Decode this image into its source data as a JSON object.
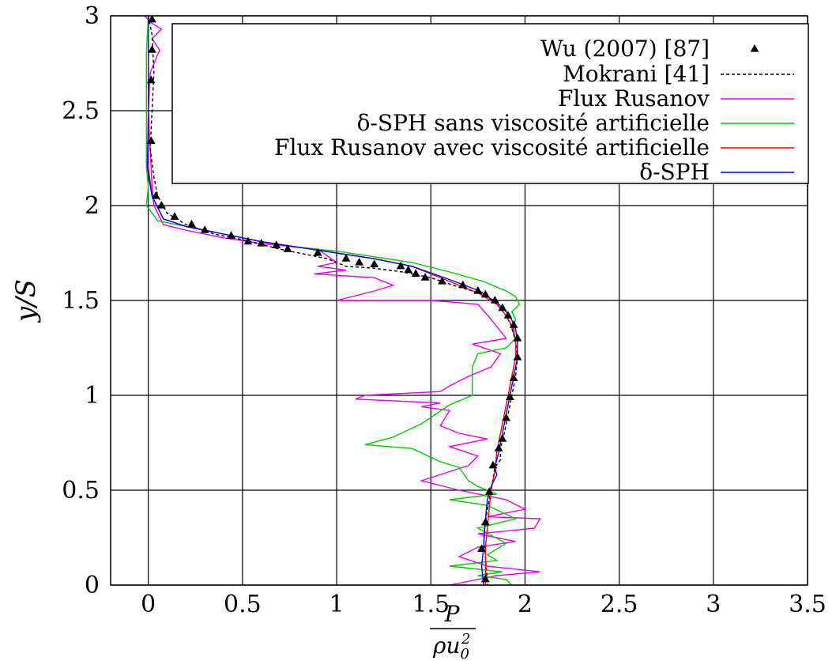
{
  "chart_data": {
    "type": "line",
    "xlabel": {
      "numerator": "P",
      "denominator_base": "ρu",
      "denominator_sub": "0",
      "denominator_sup": "2"
    },
    "ylabel": "y/S",
    "xlim": [
      -0.2,
      3.5
    ],
    "ylim": [
      0,
      3
    ],
    "x_ticks": [
      0,
      0.5,
      1,
      1.5,
      2,
      2.5,
      3,
      3.5
    ],
    "x_tick_labels": [
      "0",
      "0.5",
      "1",
      "1.5",
      "2",
      "2.5",
      "3",
      "3.5"
    ],
    "y_ticks": [
      0,
      0.5,
      1,
      1.5,
      2,
      2.5,
      3
    ],
    "y_tick_labels": [
      "0",
      "0.5",
      "1",
      "1.5",
      "2",
      "2.5",
      "3"
    ],
    "grid": true,
    "legend_position": "top-right",
    "series": [
      {
        "name": "Wu (2007) [87]",
        "style": "markers",
        "marker": "triangle",
        "color": "#000000",
        "points": [
          [
            0.02,
            2.98
          ],
          [
            0.02,
            2.82
          ],
          [
            0.015,
            2.66
          ],
          [
            0.015,
            2.34
          ],
          [
            0.04,
            2.05
          ],
          [
            0.07,
            2.0
          ],
          [
            0.14,
            1.94
          ],
          [
            0.23,
            1.9
          ],
          [
            0.3,
            1.87
          ],
          [
            0.44,
            1.84
          ],
          [
            0.53,
            1.81
          ],
          [
            0.6,
            1.8
          ],
          [
            0.68,
            1.79
          ],
          [
            0.74,
            1.77
          ],
          [
            0.9,
            1.75
          ],
          [
            1.05,
            1.72
          ],
          [
            1.12,
            1.7
          ],
          [
            1.2,
            1.69
          ],
          [
            1.34,
            1.68
          ],
          [
            1.38,
            1.66
          ],
          [
            1.42,
            1.64
          ],
          [
            1.47,
            1.62
          ],
          [
            1.56,
            1.6
          ],
          [
            1.67,
            1.58
          ],
          [
            1.75,
            1.55
          ],
          [
            1.79,
            1.53
          ],
          [
            1.84,
            1.5
          ],
          [
            1.88,
            1.46
          ],
          [
            1.91,
            1.42
          ],
          [
            1.94,
            1.37
          ],
          [
            1.96,
            1.3
          ],
          [
            1.96,
            1.2
          ],
          [
            1.94,
            1.09
          ],
          [
            1.92,
            0.99
          ],
          [
            1.9,
            0.88
          ],
          [
            1.88,
            0.77
          ],
          [
            1.86,
            0.72
          ],
          [
            1.83,
            0.63
          ],
          [
            1.81,
            0.49
          ],
          [
            1.79,
            0.33
          ],
          [
            1.77,
            0.19
          ],
          [
            1.79,
            0.03
          ]
        ]
      },
      {
        "name": "Mokrani [41]",
        "style": "dashed",
        "color": "#000000",
        "points": [
          [
            0.0,
            3.0
          ],
          [
            0.02,
            2.9
          ],
          [
            0.03,
            2.7
          ],
          [
            0.02,
            2.5
          ],
          [
            0.01,
            2.3
          ],
          [
            0.03,
            2.15
          ],
          [
            0.05,
            2.05
          ],
          [
            0.1,
            1.96
          ],
          [
            0.2,
            1.9
          ],
          [
            0.35,
            1.85
          ],
          [
            0.5,
            1.82
          ],
          [
            0.62,
            1.79
          ],
          [
            0.7,
            1.77
          ],
          [
            0.8,
            1.75
          ],
          [
            0.95,
            1.72
          ],
          [
            1.05,
            1.68
          ],
          [
            1.2,
            1.67
          ],
          [
            1.35,
            1.65
          ],
          [
            1.5,
            1.62
          ],
          [
            1.62,
            1.58
          ],
          [
            1.72,
            1.55
          ],
          [
            1.8,
            1.52
          ],
          [
            1.86,
            1.47
          ],
          [
            1.9,
            1.42
          ],
          [
            1.93,
            1.36
          ],
          [
            1.95,
            1.28
          ],
          [
            1.96,
            1.2
          ],
          [
            1.95,
            1.1
          ],
          [
            1.93,
            1.0
          ],
          [
            1.91,
            0.9
          ],
          [
            1.89,
            0.8
          ],
          [
            1.87,
            0.72
          ],
          [
            1.87,
            0.66
          ],
          [
            1.84,
            0.62
          ],
          [
            1.82,
            0.5
          ],
          [
            1.8,
            0.4
          ],
          [
            1.78,
            0.25
          ],
          [
            1.79,
            0.15
          ],
          [
            1.8,
            0.0
          ]
        ]
      },
      {
        "name": "Flux Rusanov",
        "style": "solid",
        "color": "#e600e6",
        "points": [
          [
            -0.02,
            3.0
          ],
          [
            0.02,
            2.96
          ],
          [
            0.07,
            2.93
          ],
          [
            0.02,
            2.88
          ],
          [
            0.06,
            2.82
          ],
          [
            0.01,
            2.7
          ],
          [
            0.0,
            2.5
          ],
          [
            0.01,
            2.3
          ],
          [
            0.02,
            2.1
          ],
          [
            0.03,
            2.0
          ],
          [
            0.08,
            1.9
          ],
          [
            0.2,
            1.87
          ],
          [
            0.4,
            1.83
          ],
          [
            0.6,
            1.8
          ],
          [
            0.8,
            1.78
          ],
          [
            0.9,
            1.77
          ],
          [
            1.0,
            1.7
          ],
          [
            0.9,
            1.68
          ],
          [
            1.05,
            1.66
          ],
          [
            0.88,
            1.64
          ],
          [
            1.2,
            1.62
          ],
          [
            1.3,
            1.58
          ],
          [
            1.2,
            1.55
          ],
          [
            1.0,
            1.5
          ],
          [
            1.5,
            1.5
          ],
          [
            1.75,
            1.48
          ],
          [
            1.82,
            1.4
          ],
          [
            1.9,
            1.3
          ],
          [
            1.72,
            1.27
          ],
          [
            1.87,
            1.22
          ],
          [
            1.82,
            1.15
          ],
          [
            1.7,
            1.1
          ],
          [
            1.6,
            1.05
          ],
          [
            1.55,
            1.02
          ],
          [
            1.15,
            1.0
          ],
          [
            1.1,
            0.98
          ],
          [
            1.55,
            0.96
          ],
          [
            1.45,
            0.94
          ],
          [
            1.6,
            0.92
          ],
          [
            1.55,
            0.84
          ],
          [
            1.65,
            0.8
          ],
          [
            1.8,
            0.77
          ],
          [
            1.6,
            0.73
          ],
          [
            1.75,
            0.68
          ],
          [
            1.7,
            0.63
          ],
          [
            1.45,
            0.55
          ],
          [
            1.65,
            0.5
          ],
          [
            1.8,
            0.47
          ],
          [
            1.9,
            0.45
          ],
          [
            2.0,
            0.4
          ],
          [
            1.8,
            0.36
          ],
          [
            2.08,
            0.35
          ],
          [
            2.05,
            0.3
          ],
          [
            1.75,
            0.27
          ],
          [
            1.95,
            0.23
          ],
          [
            1.75,
            0.2
          ],
          [
            1.65,
            0.15
          ],
          [
            1.8,
            0.1
          ],
          [
            2.08,
            0.07
          ],
          [
            1.85,
            0.05
          ],
          [
            1.6,
            0.0
          ]
        ]
      },
      {
        "name": "δ-SPH sans viscosité artificielle",
        "style": "solid",
        "color": "#00cc00",
        "points": [
          [
            0.0,
            3.0
          ],
          [
            -0.01,
            2.8
          ],
          [
            -0.01,
            2.5
          ],
          [
            -0.01,
            2.3
          ],
          [
            -0.01,
            2.2
          ],
          [
            0.0,
            2.1
          ],
          [
            -0.01,
            2.0
          ],
          [
            0.05,
            1.92
          ],
          [
            0.2,
            1.89
          ],
          [
            0.4,
            1.85
          ],
          [
            0.6,
            1.81
          ],
          [
            0.8,
            1.78
          ],
          [
            1.0,
            1.76
          ],
          [
            1.2,
            1.73
          ],
          [
            1.4,
            1.7
          ],
          [
            1.6,
            1.65
          ],
          [
            1.78,
            1.6
          ],
          [
            1.85,
            1.57
          ],
          [
            1.9,
            1.55
          ],
          [
            1.95,
            1.52
          ],
          [
            1.97,
            1.48
          ],
          [
            1.93,
            1.44
          ],
          [
            1.95,
            1.4
          ],
          [
            1.93,
            1.35
          ],
          [
            1.95,
            1.3
          ],
          [
            1.9,
            1.25
          ],
          [
            1.75,
            1.22
          ],
          [
            1.72,
            1.15
          ],
          [
            1.72,
            1.0
          ],
          [
            1.6,
            0.95
          ],
          [
            1.45,
            0.85
          ],
          [
            1.3,
            0.78
          ],
          [
            1.15,
            0.74
          ],
          [
            1.4,
            0.72
          ],
          [
            1.55,
            0.65
          ],
          [
            1.65,
            0.62
          ],
          [
            1.7,
            0.55
          ],
          [
            1.75,
            0.52
          ],
          [
            1.85,
            0.48
          ],
          [
            1.6,
            0.45
          ],
          [
            1.8,
            0.42
          ],
          [
            1.95,
            0.35
          ],
          [
            1.75,
            0.3
          ],
          [
            1.9,
            0.22
          ],
          [
            1.8,
            0.16
          ],
          [
            1.85,
            0.13
          ],
          [
            1.6,
            0.1
          ],
          [
            1.88,
            0.07
          ],
          [
            1.75,
            0.05
          ],
          [
            1.9,
            0.03
          ],
          [
            1.93,
            0.0
          ]
        ]
      },
      {
        "name": "Flux Rusanov avec viscosité artificielle",
        "style": "solid",
        "color": "#ff0000",
        "points": [
          [
            0.0,
            3.0
          ],
          [
            0.0,
            2.5
          ],
          [
            0.0,
            2.2
          ],
          [
            0.02,
            2.05
          ],
          [
            0.08,
            1.93
          ],
          [
            0.2,
            1.89
          ],
          [
            0.4,
            1.85
          ],
          [
            0.6,
            1.81
          ],
          [
            0.8,
            1.78
          ],
          [
            1.0,
            1.75
          ],
          [
            1.2,
            1.72
          ],
          [
            1.4,
            1.68
          ],
          [
            1.6,
            1.6
          ],
          [
            1.75,
            1.54
          ],
          [
            1.85,
            1.48
          ],
          [
            1.9,
            1.42
          ],
          [
            1.94,
            1.35
          ],
          [
            1.95,
            1.28
          ],
          [
            1.95,
            1.2
          ],
          [
            1.93,
            1.1
          ],
          [
            1.91,
            1.0
          ],
          [
            1.89,
            0.9
          ],
          [
            1.87,
            0.8
          ],
          [
            1.85,
            0.7
          ],
          [
            1.84,
            0.6
          ],
          [
            1.82,
            0.5
          ],
          [
            1.81,
            0.4
          ],
          [
            1.8,
            0.3
          ],
          [
            1.79,
            0.2
          ],
          [
            1.79,
            0.1
          ],
          [
            1.79,
            0.0
          ]
        ]
      },
      {
        "name": "δ-SPH",
        "style": "solid",
        "color": "#0000ff",
        "points": [
          [
            0.0,
            3.0
          ],
          [
            0.0,
            2.5
          ],
          [
            -0.005,
            2.2
          ],
          [
            0.02,
            2.05
          ],
          [
            0.08,
            1.93
          ],
          [
            0.2,
            1.89
          ],
          [
            0.4,
            1.85
          ],
          [
            0.6,
            1.81
          ],
          [
            0.8,
            1.78
          ],
          [
            1.0,
            1.75
          ],
          [
            1.2,
            1.72
          ],
          [
            1.4,
            1.68
          ],
          [
            1.6,
            1.61
          ],
          [
            1.76,
            1.55
          ],
          [
            1.86,
            1.48
          ],
          [
            1.92,
            1.42
          ],
          [
            1.95,
            1.35
          ],
          [
            1.96,
            1.28
          ],
          [
            1.96,
            1.2
          ],
          [
            1.94,
            1.1
          ],
          [
            1.92,
            1.0
          ],
          [
            1.9,
            0.9
          ],
          [
            1.88,
            0.8
          ],
          [
            1.86,
            0.7
          ],
          [
            1.84,
            0.62
          ],
          [
            1.85,
            0.58
          ],
          [
            1.82,
            0.52
          ],
          [
            1.8,
            0.45
          ],
          [
            1.79,
            0.35
          ],
          [
            1.78,
            0.2
          ],
          [
            1.77,
            0.1
          ],
          [
            1.78,
            0.0
          ]
        ]
      }
    ]
  }
}
